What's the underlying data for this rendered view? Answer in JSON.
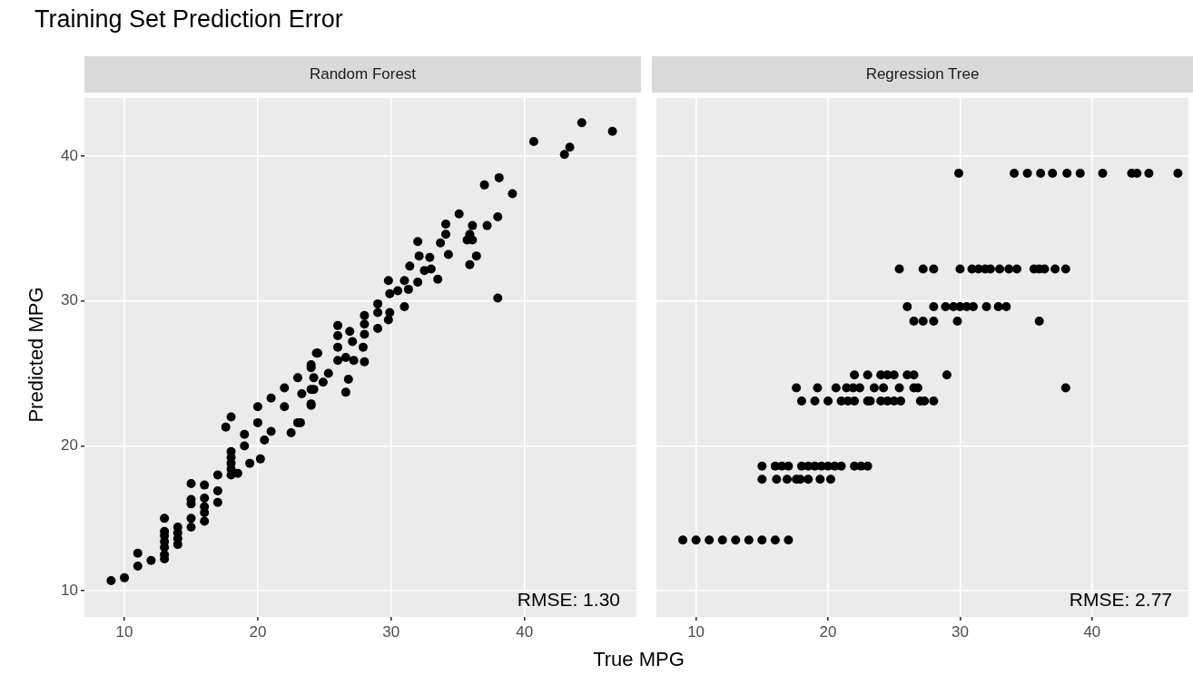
{
  "chart_data": [
    {
      "type": "scatter",
      "title": "Training Set Prediction Error",
      "subtitle": "Random Forest",
      "xlabel": "True MPG",
      "ylabel": "Predicted MPG",
      "color": "#000000",
      "marker": "circle",
      "grid": true,
      "annotations": [
        "RMSE: 1.30"
      ],
      "xlim": [
        7.0,
        48.4
      ],
      "ylim": [
        8.2,
        44.0
      ],
      "xticks": [
        10,
        20,
        30,
        40
      ],
      "yticks": [
        10,
        20,
        30,
        40
      ],
      "x": [
        9,
        10,
        11,
        11,
        12,
        13,
        13,
        13,
        13,
        13,
        13,
        13,
        14,
        14,
        14,
        14,
        15,
        15,
        15,
        15,
        15,
        16,
        16,
        16,
        16,
        16,
        17,
        17,
        17,
        17.6,
        18,
        18,
        18,
        18,
        18,
        18,
        18.5,
        19,
        19,
        19.4,
        20,
        20,
        20.2,
        20.5,
        21,
        22,
        22,
        21,
        23,
        22.5,
        23,
        24,
        24,
        24.4,
        24.2,
        40.7,
        44.3,
        43.4,
        43.0,
        46.6,
        37.0,
        38.1,
        39.1,
        35.1,
        38.0,
        37.2,
        36.1,
        35.9,
        35.7,
        36.1,
        36.4,
        35.9,
        38.0,
        34.1,
        34.1,
        33.7,
        34.3,
        32.0,
        32.1,
        31.4,
        32.9,
        32.5,
        33.0,
        33.5,
        32.0,
        29.8,
        31.0,
        29.9,
        30.5,
        31.3,
        31.0,
        29.0,
        29.0,
        29.9,
        29.0,
        28.0,
        28.0,
        28.0,
        29.8,
        26.0,
        26.0,
        26.0,
        26.0,
        26.9,
        27.1,
        26.6,
        27.2,
        27.9,
        28.0,
        24.5,
        24.0,
        25.3,
        24.9,
        24.2,
        26.8,
        26.6,
        24.0,
        24.0,
        23.2,
        23.3
      ],
      "values": [
        10.7,
        10.9,
        12.6,
        11.7,
        12.1,
        15.0,
        14.1,
        13.8,
        13.4,
        13.0,
        12.5,
        12.2,
        14.4,
        14.0,
        13.6,
        13.2,
        17.4,
        16.3,
        16.0,
        15.0,
        14.4,
        17.3,
        16.4,
        15.8,
        15.4,
        14.8,
        18.0,
        16.9,
        16.1,
        21.3,
        22.0,
        19.6,
        19.2,
        18.8,
        18.4,
        18.0,
        18.1,
        20.8,
        20.0,
        18.8,
        22.7,
        21.6,
        19.1,
        20.4,
        21.0,
        24.0,
        22.7,
        23.3,
        21.6,
        20.9,
        24.7,
        25.6,
        22.9,
        26.4,
        23.9,
        41.0,
        42.3,
        40.6,
        40.1,
        41.7,
        38.0,
        38.5,
        37.4,
        36.0,
        35.8,
        35.2,
        35.2,
        34.6,
        34.2,
        34.2,
        33.1,
        32.5,
        30.2,
        35.3,
        34.6,
        34.0,
        33.2,
        34.1,
        33.1,
        32.4,
        33.0,
        32.1,
        32.2,
        31.5,
        31.3,
        31.4,
        31.4,
        30.5,
        30.7,
        30.8,
        29.6,
        29.8,
        29.2,
        29.2,
        28.1,
        29.0,
        28.4,
        27.7,
        28.7,
        28.3,
        27.6,
        26.8,
        25.9,
        27.9,
        27.2,
        26.1,
        25.9,
        26.8,
        25.8,
        26.4,
        25.4,
        25.0,
        24.4,
        24.7,
        24.6,
        23.7,
        23.9,
        22.8,
        21.6,
        23.6
      ]
    },
    {
      "type": "scatter",
      "subtitle": "Regression Tree",
      "color": "#000000",
      "marker": "circle",
      "grid": true,
      "tick_labels": "x",
      "annotations": [
        "RMSE: 2.77"
      ],
      "xlim": [
        7.0,
        47.3
      ],
      "ylim": [
        8.2,
        44.0
      ],
      "xticks": [
        10,
        20,
        30,
        40
      ],
      "yticks": [
        10,
        20,
        30,
        40
      ],
      "x": [
        29.9,
        34.1,
        35.1,
        36.1,
        37.0,
        38.1,
        39.1,
        40.8,
        43.0,
        43.4,
        44.3,
        46.5,
        25.4,
        27.2,
        28.0,
        30.0,
        30.9,
        31.4,
        31.9,
        32.3,
        33.0,
        33.7,
        34.3,
        35.6,
        36.0,
        36.4,
        37.2,
        38.0,
        26.0,
        28.0,
        28.9,
        29.5,
        30.0,
        30.5,
        31.0,
        32.0,
        32.9,
        33.5,
        26.5,
        27.2,
        28.0,
        29.8,
        36.0,
        22.0,
        23.0,
        24.0,
        24.5,
        25.0,
        26.0,
        26.5,
        29.0,
        17.6,
        19.2,
        20.6,
        21.4,
        21.9,
        22.4,
        23.5,
        24.2,
        25.4,
        26.5,
        26.8,
        38.0,
        18.0,
        19.0,
        20.0,
        21.0,
        21.5,
        22.0,
        23.0,
        23.2,
        24.0,
        24.5,
        25.0,
        25.5,
        27.0,
        27.3,
        28.0,
        15.0,
        16.0,
        16.5,
        17.0,
        18.0,
        18.5,
        19.0,
        19.5,
        20.0,
        20.5,
        21.0,
        22.0,
        22.5,
        23.0,
        15.0,
        16.1,
        16.9,
        17.6,
        17.9,
        18.5,
        19.4,
        20.2,
        9,
        10,
        11,
        12,
        13,
        14,
        15,
        16,
        17
      ],
      "values": [
        38.8,
        38.8,
        38.8,
        38.8,
        38.8,
        38.8,
        38.8,
        38.8,
        38.8,
        38.8,
        38.8,
        38.8,
        32.2,
        32.2,
        32.2,
        32.2,
        32.2,
        32.2,
        32.2,
        32.2,
        32.2,
        32.2,
        32.2,
        32.2,
        32.2,
        32.2,
        32.2,
        32.2,
        29.6,
        29.6,
        29.6,
        29.6,
        29.6,
        29.6,
        29.6,
        29.6,
        29.6,
        29.6,
        28.6,
        28.6,
        28.6,
        28.6,
        28.6,
        24.9,
        24.9,
        24.9,
        24.9,
        24.9,
        24.9,
        24.9,
        24.9,
        24.0,
        24.0,
        24.0,
        24.0,
        24.0,
        24.0,
        24.0,
        24.0,
        24.0,
        24.0,
        24.0,
        24.0,
        23.1,
        23.1,
        23.1,
        23.1,
        23.1,
        23.1,
        23.1,
        23.1,
        23.1,
        23.1,
        23.1,
        23.1,
        23.1,
        23.1,
        23.1,
        18.6,
        18.6,
        18.6,
        18.6,
        18.6,
        18.6,
        18.6,
        18.6,
        18.6,
        18.6,
        18.6,
        18.6,
        18.6,
        18.6,
        17.7,
        17.7,
        17.7,
        17.7,
        17.7,
        17.7,
        17.7,
        17.7,
        13.5,
        13.5,
        13.5,
        13.5,
        13.5,
        13.5,
        13.5,
        13.5,
        13.5
      ]
    }
  ]
}
